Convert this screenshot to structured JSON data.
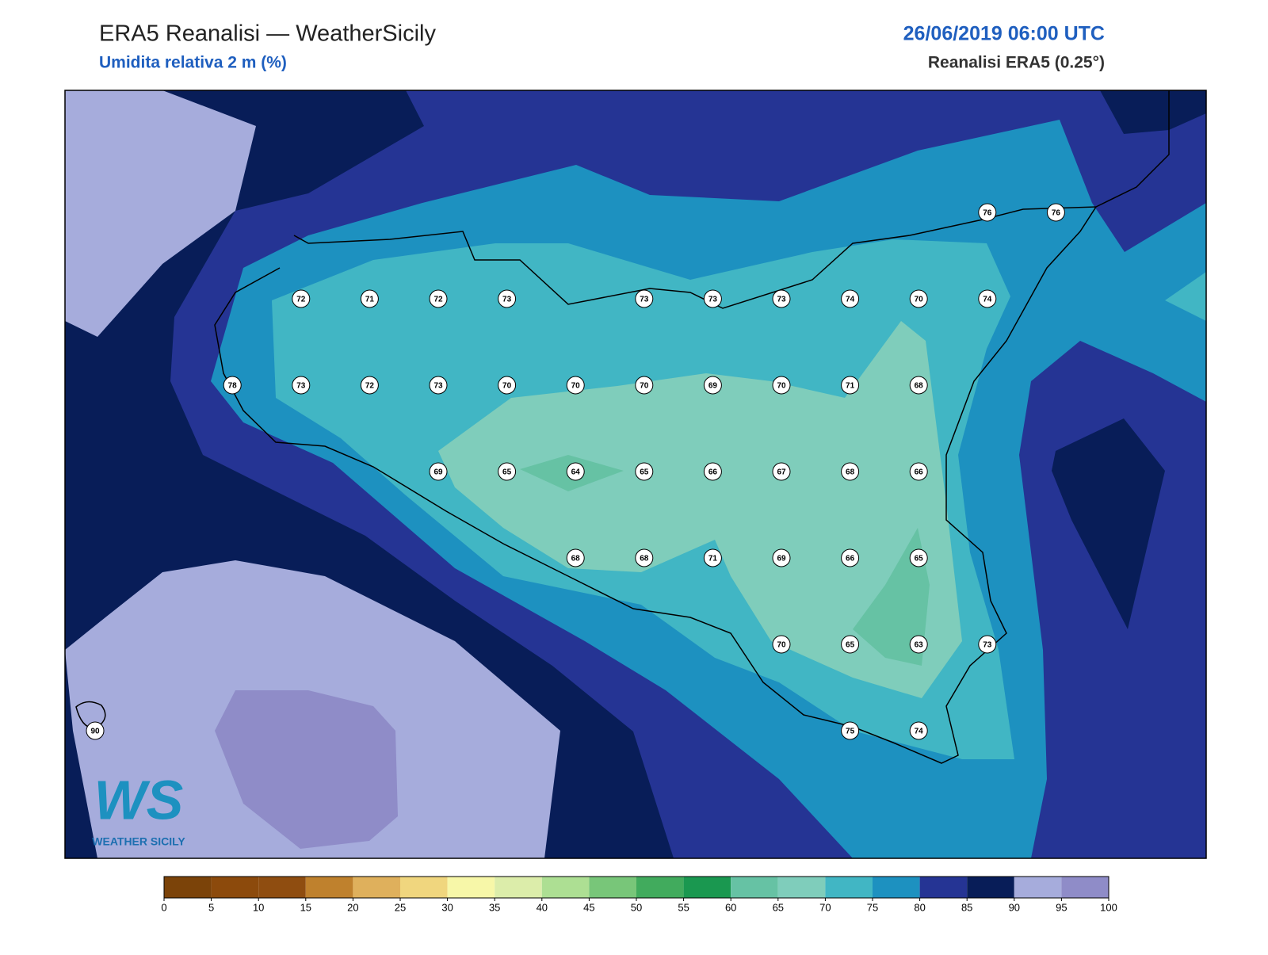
{
  "header": {
    "title": "ERA5 Reanalisi — WeatherSicily",
    "subtitle": "Umidita relativa 2 m (%)",
    "datetime": "26/06/2019 06:00 UTC",
    "source": "Reanalisi ERA5 (0.25°)"
  },
  "stations": {
    "rows": [
      [
        null,
        null,
        null,
        null,
        null,
        null,
        null,
        null,
        null,
        null,
        null,
        null,
        null,
        76,
        76
      ],
      [
        null,
        null,
        null,
        72,
        71,
        72,
        73,
        null,
        73,
        73,
        73,
        74,
        70,
        74,
        null
      ],
      [
        null,
        null,
        78,
        73,
        72,
        73,
        70,
        70,
        70,
        69,
        70,
        71,
        68,
        null,
        null
      ],
      [
        null,
        null,
        null,
        null,
        null,
        69,
        65,
        64,
        65,
        66,
        67,
        68,
        66,
        null,
        null
      ],
      [
        null,
        null,
        null,
        null,
        null,
        null,
        null,
        68,
        68,
        71,
        69,
        66,
        65,
        null,
        null
      ],
      [
        null,
        null,
        null,
        null,
        null,
        null,
        null,
        null,
        null,
        null,
        70,
        65,
        63,
        73,
        null
      ],
      [
        90,
        null,
        null,
        null,
        null,
        null,
        null,
        null,
        null,
        null,
        null,
        75,
        74,
        null,
        null
      ]
    ]
  },
  "colorbar": {
    "ticks": [
      0,
      5,
      10,
      15,
      20,
      25,
      30,
      35,
      40,
      45,
      50,
      55,
      60,
      65,
      70,
      75,
      80,
      85,
      90,
      95,
      100
    ],
    "colors": [
      "#7b4309",
      "#8c4a0c",
      "#8f4d10",
      "#bf812d",
      "#dfb05c",
      "#f0d67e",
      "#f7f7a8",
      "#dcedaa",
      "#addf93",
      "#78c679",
      "#41ab5d",
      "#1a9850",
      "#66c2a4",
      "#7fcdbb",
      "#41b6c4",
      "#1d91c0",
      "#253494",
      "#081d58",
      "#a6acdc",
      "#8f8cc8"
    ]
  },
  "logo": {
    "mark": "WS",
    "name": "WEATHER SICILY"
  }
}
